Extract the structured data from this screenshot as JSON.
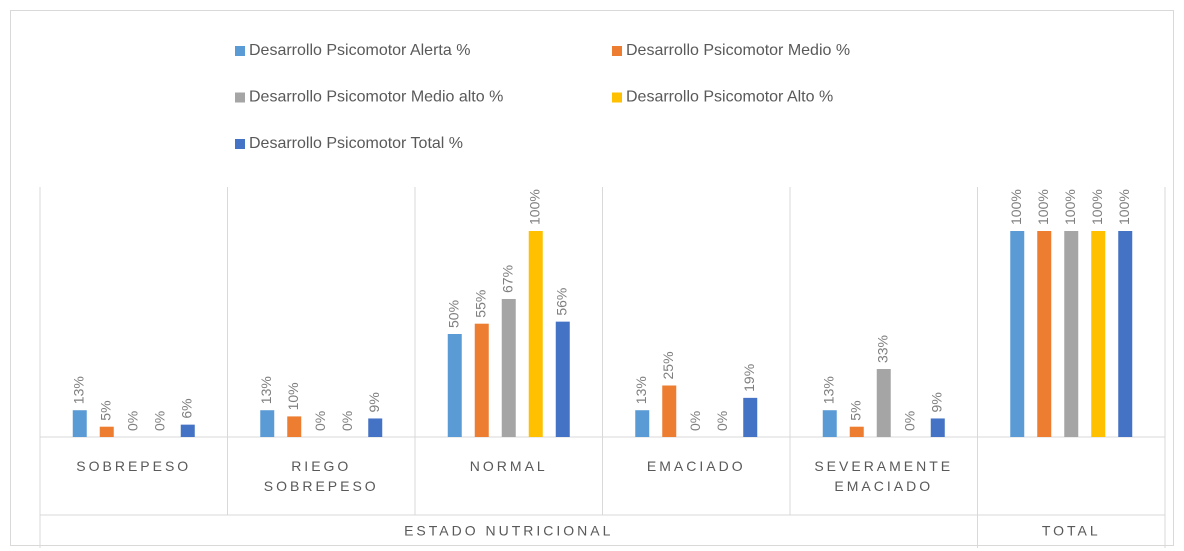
{
  "chart_data": {
    "type": "bar",
    "groups": [
      {
        "name": "ESTADO NUTRICIONAL",
        "categories": [
          "SOBREPESO",
          "RIEGO SOBREPESO",
          "NORMAL",
          "EMACIADO",
          "SEVERAMENTE EMACIADO"
        ]
      },
      {
        "name": "TOTAL",
        "categories": [
          null
        ]
      }
    ],
    "series": [
      {
        "name": "Desarrollo Psicomotor Alerta %",
        "color": "#5b9bd5",
        "values": [
          13,
          13,
          50,
          13,
          13,
          100
        ],
        "value_labels": [
          "13%",
          "13%",
          "50%",
          "13%",
          "13%",
          "100%"
        ]
      },
      {
        "name": "Desarrollo Psicomotor Medio %",
        "color": "#ed7d31",
        "values": [
          5,
          10,
          55,
          25,
          5,
          100
        ],
        "value_labels": [
          "5%",
          "10%",
          "55%",
          "25%",
          "5%",
          "100%"
        ]
      },
      {
        "name": "Desarrollo Psicomotor Medio alto %",
        "color": "#a5a5a5",
        "values": [
          0,
          0,
          67,
          0,
          33,
          100
        ],
        "value_labels": [
          "0%",
          "0%",
          "67%",
          "0%",
          "33%",
          "100%"
        ]
      },
      {
        "name": "Desarrollo Psicomotor Alto %",
        "color": "#ffc000",
        "values": [
          0,
          0,
          100,
          0,
          0,
          100
        ],
        "value_labels": [
          "0%",
          "0%",
          "100%",
          "0%",
          "0%",
          "100%"
        ]
      },
      {
        "name": "Desarrollo Psicomotor Total %",
        "color": "#4472c4",
        "values": [
          6,
          9,
          56,
          19,
          9,
          100
        ],
        "value_labels": [
          "6%",
          "9%",
          "56%",
          "19%",
          "9%",
          "100%"
        ]
      }
    ],
    "ylim": [
      0,
      100
    ],
    "legend": "top"
  }
}
